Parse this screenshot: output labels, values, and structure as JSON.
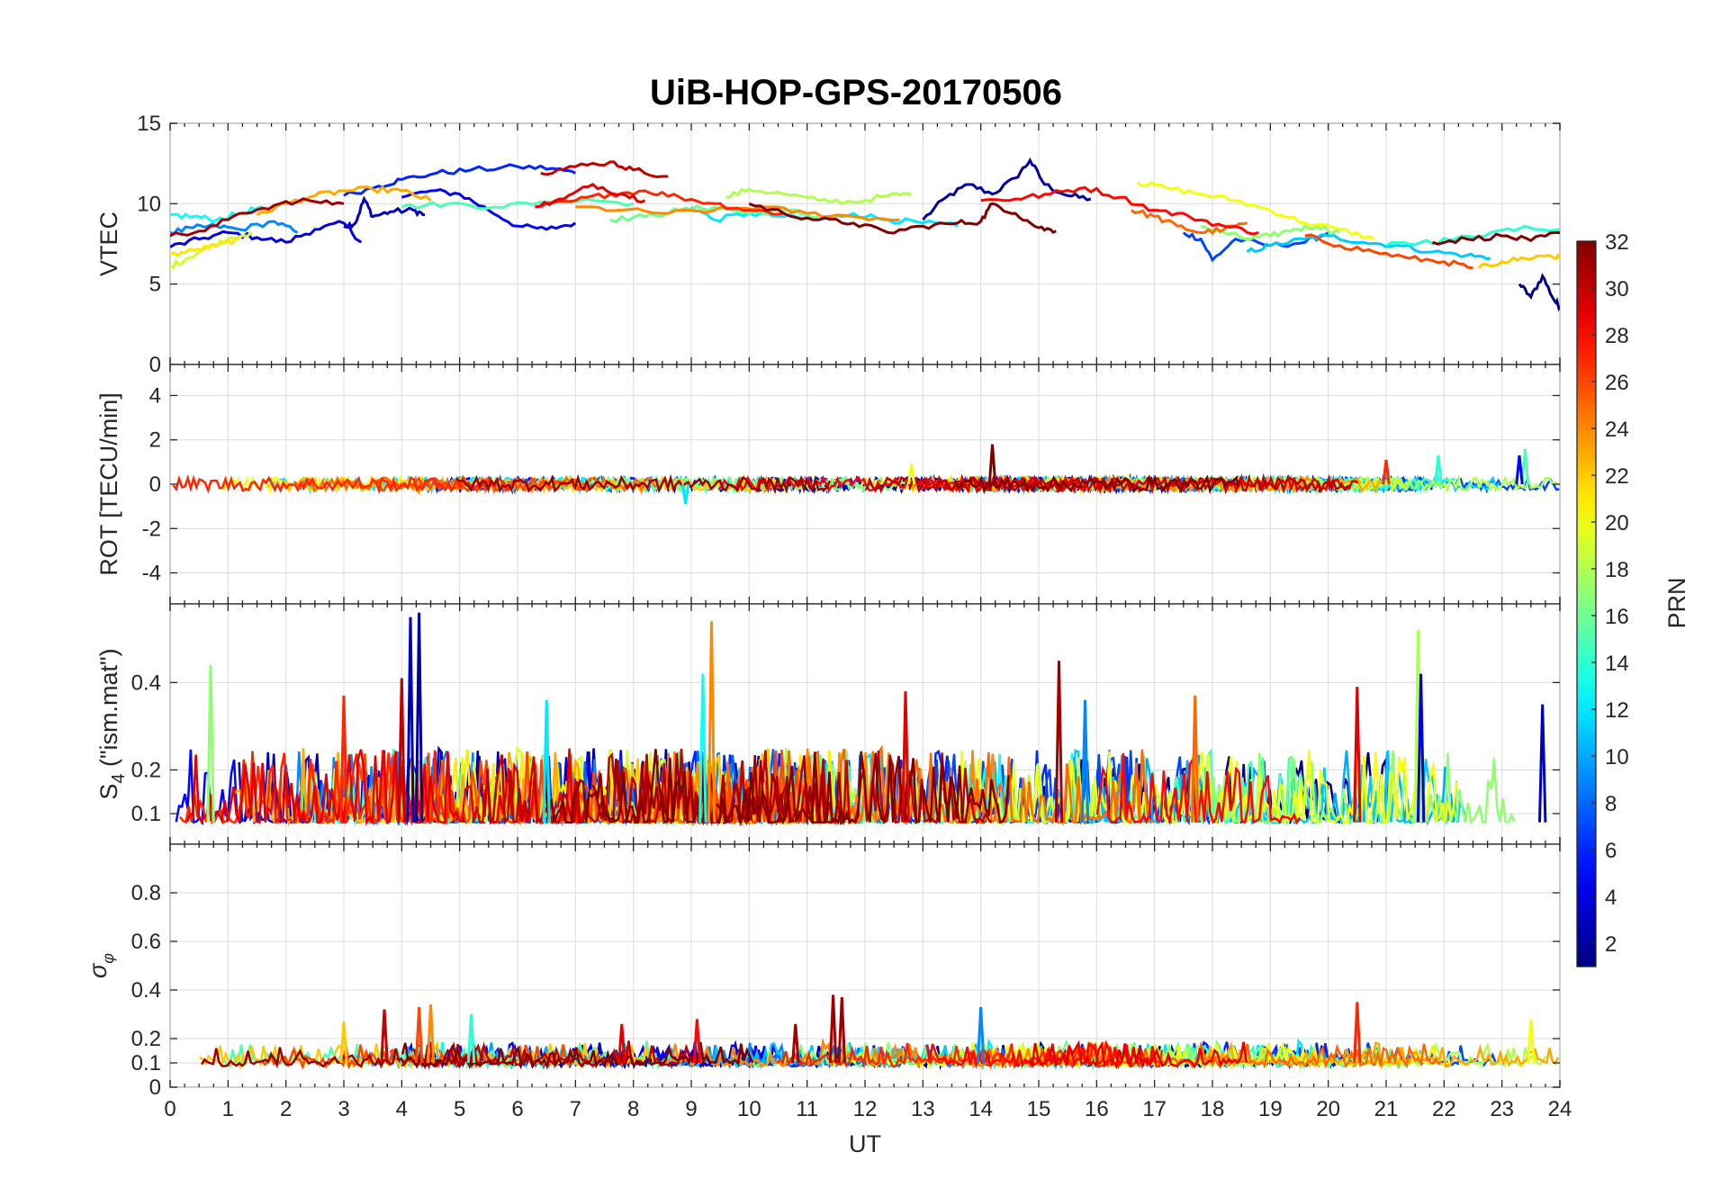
{
  "title": "UiB-HOP-GPS-20170506",
  "colorbar": {
    "label": "PRN",
    "range": [
      1,
      32
    ],
    "ticks": [
      2,
      4,
      6,
      8,
      10,
      12,
      14,
      16,
      18,
      20,
      22,
      24,
      26,
      28,
      30,
      32
    ],
    "colormap": "jet"
  },
  "chart_data": [
    {
      "type": "line",
      "panel": "vtec",
      "ylabel": "VTEC",
      "xlim": [
        0,
        24
      ],
      "ylim": [
        0,
        15
      ],
      "yticks": [
        0,
        5,
        10,
        15
      ],
      "x_ticks_labeled": false,
      "grid": true,
      "series_color_by": "PRN",
      "segments": [
        {
          "prn": 2,
          "x": [
            13.0,
            13.4,
            13.8,
            14.2,
            14.6,
            14.85,
            15.1,
            15.5,
            15.9
          ],
          "y": [
            9.0,
            10.4,
            11.2,
            10.6,
            11.6,
            12.7,
            11.2,
            10.5,
            10.3
          ]
        },
        {
          "prn": 1,
          "x": [
            23.3,
            23.5,
            23.7,
            23.9,
            24.0
          ],
          "y": [
            5.0,
            4.2,
            5.5,
            4.0,
            3.6
          ]
        },
        {
          "prn": 3,
          "x": [
            3.0,
            3.2,
            3.35,
            3.5,
            3.8,
            4.2,
            4.4
          ],
          "y": [
            8.6,
            8.8,
            10.3,
            9.2,
            9.5,
            9.6,
            9.3
          ]
        },
        {
          "prn": 4,
          "x": [
            0.0,
            0.5,
            1.0,
            1.5,
            2.0,
            2.5,
            3.0,
            3.3
          ],
          "y": [
            7.3,
            7.8,
            8.2,
            7.9,
            7.6,
            8.4,
            8.8,
            7.6
          ]
        },
        {
          "prn": 5,
          "x": [
            4.0,
            4.5,
            5.0,
            5.5,
            6.0,
            6.5,
            7.0
          ],
          "y": [
            10.4,
            10.8,
            10.6,
            9.6,
            8.6,
            8.4,
            8.8
          ]
        },
        {
          "prn": 6,
          "x": [
            3.0,
            3.6,
            4.0,
            4.6,
            5.2,
            6.0,
            6.6,
            7.0
          ],
          "y": [
            10.5,
            11.1,
            11.5,
            11.9,
            12.1,
            12.3,
            12.2,
            11.9
          ]
        },
        {
          "prn": 7,
          "x": [
            17.5,
            17.8,
            18.0,
            18.4,
            19.0,
            19.6,
            20.0
          ],
          "y": [
            8.2,
            7.8,
            6.5,
            7.8,
            7.4,
            7.6,
            8.2
          ]
        },
        {
          "prn": 9,
          "x": [
            0.0,
            0.4,
            0.8,
            1.2,
            1.8,
            2.2
          ],
          "y": [
            8.2,
            8.5,
            8.6,
            8.4,
            8.9,
            8.2
          ]
        },
        {
          "prn": 11,
          "x": [
            18.6,
            19.0,
            19.6,
            20.0,
            20.6,
            21.2,
            21.8,
            22.4,
            22.8
          ],
          "y": [
            7.0,
            7.4,
            7.8,
            8.0,
            7.6,
            7.4,
            7.0,
            6.8,
            6.6
          ]
        },
        {
          "prn": 12,
          "x": [
            9.0,
            9.4,
            10.0,
            10.6,
            11.2,
            11.8,
            12.4,
            13.0,
            13.6
          ],
          "y": [
            9.8,
            9.0,
            9.4,
            9.2,
            9.0,
            9.4,
            9.0,
            8.8,
            8.6
          ]
        },
        {
          "prn": 13,
          "x": [
            0.0,
            0.4,
            0.8,
            1.2,
            1.6
          ],
          "y": [
            9.3,
            9.2,
            9.0,
            9.4,
            9.8
          ]
        },
        {
          "prn": 14,
          "x": [
            21.0,
            21.6,
            22.2,
            22.8,
            23.4,
            24.0
          ],
          "y": [
            7.4,
            7.6,
            7.8,
            8.2,
            8.6,
            8.4
          ]
        },
        {
          "prn": 15,
          "x": [
            4.0,
            4.8,
            5.6,
            6.4,
            7.2,
            8.0
          ],
          "y": [
            9.8,
            10.0,
            9.8,
            10.1,
            10.3,
            10.0
          ]
        },
        {
          "prn": 16,
          "x": [
            7.6,
            8.2,
            8.8,
            9.4,
            10.0,
            10.6,
            11.2
          ],
          "y": [
            9.0,
            9.2,
            9.6,
            9.8,
            9.4,
            9.6,
            9.2
          ]
        },
        {
          "prn": 17,
          "x": [
            17.8,
            18.2,
            18.6,
            19.0,
            19.4,
            19.8,
            20.2
          ],
          "y": [
            8.6,
            8.2,
            7.8,
            8.0,
            8.4,
            8.6,
            8.2
          ]
        },
        {
          "prn": 18,
          "x": [
            9.6,
            10.0,
            10.6,
            11.2,
            11.8,
            12.4,
            12.8
          ],
          "y": [
            10.4,
            10.9,
            10.6,
            10.2,
            10.1,
            10.5,
            10.6
          ]
        },
        {
          "prn": 19,
          "x": [
            0.0,
            0.3,
            0.6,
            1.0,
            1.4
          ],
          "y": [
            6.1,
            6.6,
            7.2,
            7.8,
            8.2
          ]
        },
        {
          "prn": 20,
          "x": [
            16.7,
            17.2,
            17.8,
            18.4,
            19.0,
            19.6,
            20.2,
            20.8
          ],
          "y": [
            11.3,
            11.0,
            10.6,
            10.2,
            9.6,
            8.8,
            8.4,
            7.8
          ]
        },
        {
          "prn": 21,
          "x": [
            0.0,
            0.4,
            0.8,
            1.2
          ],
          "y": [
            6.8,
            7.1,
            7.4,
            7.8
          ]
        },
        {
          "prn": 22,
          "x": [
            22.6,
            23.0,
            23.4,
            23.8,
            24.0
          ],
          "y": [
            6.0,
            6.4,
            6.6,
            6.8,
            6.6
          ]
        },
        {
          "prn": 23,
          "x": [
            1.5,
            2.0,
            2.5,
            3.0,
            3.5,
            4.0,
            4.5
          ],
          "y": [
            9.3,
            10.0,
            10.5,
            10.8,
            10.9,
            10.8,
            10.2
          ]
        },
        {
          "prn": 24,
          "x": [
            7.0,
            7.8,
            8.6,
            9.4,
            10.2,
            11.0,
            11.8,
            12.6
          ],
          "y": [
            9.8,
            9.6,
            9.4,
            9.6,
            9.8,
            9.4,
            9.2,
            9.0
          ]
        },
        {
          "prn": 25,
          "x": [
            16.6,
            17.0,
            17.4,
            17.8,
            18.2,
            18.6
          ],
          "y": [
            9.6,
            9.2,
            8.6,
            8.2,
            8.4,
            8.8
          ]
        },
        {
          "prn": 26,
          "x": [
            19.6,
            20.2,
            20.8,
            21.4,
            22.0,
            22.5
          ],
          "y": [
            8.0,
            7.4,
            7.0,
            6.6,
            6.4,
            6.0
          ]
        },
        {
          "prn": 27,
          "x": [
            6.4,
            7.0,
            7.6,
            8.2,
            8.8,
            9.4,
            10.0,
            10.6
          ],
          "y": [
            9.8,
            10.2,
            10.6,
            10.8,
            10.4,
            10.0,
            9.6,
            9.4
          ]
        },
        {
          "prn": 28,
          "x": [
            14.0,
            14.6,
            15.2,
            15.8,
            16.4,
            17.0,
            17.6,
            18.2,
            18.8
          ],
          "y": [
            10.2,
            10.3,
            10.6,
            11.0,
            10.4,
            9.6,
            9.2,
            8.6,
            8.2
          ]
        },
        {
          "prn": 29,
          "x": [
            6.3,
            6.8,
            7.3,
            7.8,
            8.2
          ],
          "y": [
            9.8,
            10.3,
            11.2,
            10.6,
            10.2
          ]
        },
        {
          "prn": 30,
          "x": [
            6.4,
            7.0,
            7.6,
            8.0,
            8.6
          ],
          "y": [
            11.9,
            12.3,
            12.6,
            12.1,
            11.7
          ]
        },
        {
          "prn": 31,
          "x": [
            0.0,
            0.6,
            1.2,
            1.8,
            2.4,
            3.0
          ],
          "y": [
            8.0,
            8.3,
            9.4,
            9.9,
            10.2,
            10.0
          ]
        },
        {
          "prn": 32,
          "x": [
            10.0,
            10.6,
            11.2,
            11.8,
            12.4,
            13.0,
            13.6,
            14.0,
            14.2,
            14.6,
            15.0,
            15.3
          ],
          "y": [
            10.0,
            9.4,
            9.0,
            8.8,
            8.2,
            8.6,
            8.8,
            8.9,
            10.0,
            9.4,
            8.5,
            8.3
          ]
        },
        {
          "prn": 32,
          "x": [
            21.8,
            22.4,
            23.0,
            23.5,
            24.0
          ],
          "y": [
            7.6,
            7.8,
            8.0,
            7.7,
            8.2
          ]
        }
      ]
    },
    {
      "type": "line",
      "panel": "rot",
      "ylabel": "ROT [TECU/min]",
      "xlim": [
        0,
        24
      ],
      "ylim": [
        -5.4,
        5.4
      ],
      "yticks": [
        -4,
        -2,
        0,
        2,
        4
      ],
      "x_ticks_labeled": false,
      "grid": true,
      "series_color_by": "PRN",
      "baseline": 0,
      "noise_amplitude": 0.3,
      "spikes": [
        {
          "prn": 32,
          "x": 14.2,
          "y": 1.8
        },
        {
          "prn": 15,
          "x": 23.4,
          "y": 1.6
        },
        {
          "prn": 5,
          "x": 23.3,
          "y": 1.3
        },
        {
          "prn": 14,
          "x": 21.9,
          "y": 1.3
        },
        {
          "prn": 27,
          "x": 21.0,
          "y": 1.1
        },
        {
          "prn": 12,
          "x": 8.9,
          "y": -0.9
        },
        {
          "prn": 20,
          "x": 12.8,
          "y": 0.9
        }
      ]
    },
    {
      "type": "line",
      "panel": "s4",
      "ylabel": "S4 (\"ism.mat\")",
      "ylabel_main": "S",
      "ylabel_sub": "4",
      "ylabel_rest": " (\"ism.mat\")",
      "xlim": [
        0,
        24
      ],
      "ylim": [
        0.03,
        0.58
      ],
      "yticks": [
        0.1,
        0.2,
        0.4
      ],
      "x_ticks_labeled": false,
      "grid": true,
      "series_color_by": "PRN",
      "baseline": 0.08,
      "peaks": [
        {
          "prn": 2,
          "x": 4.3,
          "y": 0.56
        },
        {
          "prn": 3,
          "x": 4.15,
          "y": 0.55
        },
        {
          "prn": 24,
          "x": 9.35,
          "y": 0.54
        },
        {
          "prn": 13,
          "x": 9.2,
          "y": 0.42
        },
        {
          "prn": 17,
          "x": 0.7,
          "y": 0.44
        },
        {
          "prn": 31,
          "x": 15.35,
          "y": 0.45
        },
        {
          "prn": 18,
          "x": 21.55,
          "y": 0.52
        },
        {
          "prn": 4,
          "x": 21.6,
          "y": 0.42
        },
        {
          "prn": 29,
          "x": 20.5,
          "y": 0.39
        },
        {
          "prn": 27,
          "x": 3.0,
          "y": 0.37
        },
        {
          "prn": 30,
          "x": 4.0,
          "y": 0.41
        },
        {
          "prn": 29,
          "x": 12.7,
          "y": 0.38
        },
        {
          "prn": 3,
          "x": 23.7,
          "y": 0.35
        },
        {
          "prn": 25,
          "x": 17.7,
          "y": 0.37
        },
        {
          "prn": 12,
          "x": 6.5,
          "y": 0.36
        },
        {
          "prn": 9,
          "x": 15.8,
          "y": 0.36
        }
      ]
    },
    {
      "type": "line",
      "panel": "sigma_phi",
      "ylabel": "σ_φ",
      "xlabel": "UT",
      "xlim": [
        0,
        24
      ],
      "ylim": [
        0,
        1
      ],
      "yticks": [
        0,
        0.1,
        0.2,
        0.4,
        0.6,
        0.8
      ],
      "xticks": [
        0,
        1,
        2,
        3,
        4,
        5,
        6,
        7,
        8,
        9,
        10,
        11,
        12,
        13,
        14,
        15,
        16,
        17,
        18,
        19,
        20,
        21,
        22,
        23,
        24
      ],
      "grid": true,
      "series_color_by": "PRN",
      "baseline": 0.1,
      "peaks": [
        {
          "prn": 31,
          "x": 11.45,
          "y": 0.38
        },
        {
          "prn": 31,
          "x": 11.6,
          "y": 0.37
        },
        {
          "prn": 27,
          "x": 20.5,
          "y": 0.35
        },
        {
          "prn": 24,
          "x": 4.5,
          "y": 0.34
        },
        {
          "prn": 26,
          "x": 4.3,
          "y": 0.33
        },
        {
          "prn": 30,
          "x": 3.7,
          "y": 0.32
        },
        {
          "prn": 9,
          "x": 14.0,
          "y": 0.33
        },
        {
          "prn": 14,
          "x": 5.2,
          "y": 0.3
        },
        {
          "prn": 22,
          "x": 3.0,
          "y": 0.27
        },
        {
          "prn": 28,
          "x": 9.1,
          "y": 0.28
        },
        {
          "prn": 20,
          "x": 23.5,
          "y": 0.28
        },
        {
          "prn": 29,
          "x": 7.8,
          "y": 0.26
        },
        {
          "prn": 31,
          "x": 10.8,
          "y": 0.26
        }
      ]
    }
  ],
  "x_tick_labels": [
    "0",
    "1",
    "2",
    "3",
    "4",
    "5",
    "6",
    "7",
    "8",
    "9",
    "10",
    "11",
    "12",
    "13",
    "14",
    "15",
    "16",
    "17",
    "18",
    "19",
    "20",
    "21",
    "22",
    "23",
    "24"
  ]
}
